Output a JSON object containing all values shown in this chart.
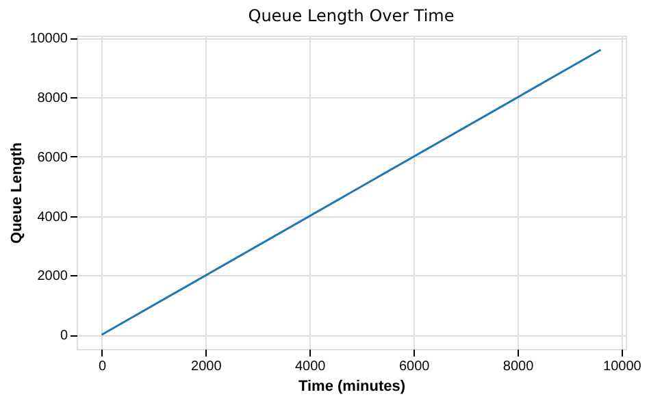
{
  "chart_data": {
    "type": "line",
    "title": "Queue Length Over Time",
    "xlabel": "Time (minutes)",
    "ylabel": "Queue Length",
    "x": [
      0,
      9600
    ],
    "series": [
      {
        "color": "#1f77b4",
        "values": [
          0,
          9600
        ]
      }
    ],
    "xlim": [
      -480,
      10080
    ],
    "xticks": [
      0,
      2000,
      4000,
      6000,
      8000,
      10000
    ],
    "ylim": [
      -480,
      10080
    ],
    "yticks": [
      0,
      2000,
      4000,
      6000,
      8000,
      10000
    ],
    "grid": true,
    "marker": "none",
    "line_style": "solid"
  }
}
